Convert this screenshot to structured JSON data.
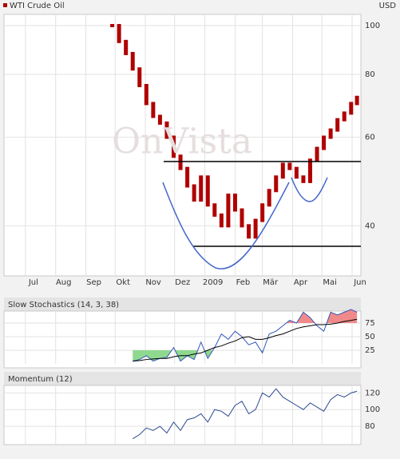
{
  "chart_data": [
    {
      "type": "candle",
      "title": "WTI Crude Oil",
      "unit": "USD",
      "watermark": "OnVista",
      "color": "#b00000",
      "log": true,
      "grid": true,
      "x": [
        111,
        118,
        125,
        132,
        139,
        146,
        153,
        160,
        167,
        174,
        181,
        188,
        195,
        202,
        209,
        216,
        223,
        230,
        237,
        244,
        251,
        258,
        265,
        272,
        279,
        286,
        293,
        300,
        307,
        314,
        321,
        328,
        335,
        342,
        349,
        356,
        362
      ],
      "values": [
        100,
        93,
        88,
        82,
        76,
        70,
        66,
        64,
        60,
        55,
        52,
        48,
        45,
        50,
        44,
        42,
        40,
        46,
        43,
        40,
        38,
        41,
        44,
        47,
        50,
        53,
        52,
        50,
        49,
        54,
        57,
        60,
        62,
        65,
        67,
        70,
        72
      ],
      "xlim": [
        0,
        366
      ],
      "xticks": [
        {
          "value": 22,
          "label": "Jul"
        },
        {
          "value": 53,
          "label": "Aug"
        },
        {
          "value": 84,
          "label": "Sep"
        },
        {
          "value": 114,
          "label": "Okt"
        },
        {
          "value": 145,
          "label": "Nov"
        },
        {
          "value": 175,
          "label": "Dez"
        },
        {
          "value": 206,
          "label": "2009"
        },
        {
          "value": 237,
          "label": "Feb"
        },
        {
          "value": 265,
          "label": "Mär"
        },
        {
          "value": 296,
          "label": "Apr"
        },
        {
          "value": 326,
          "label": "Mai"
        },
        {
          "value": 357,
          "label": "Jun"
        }
      ],
      "ylim": [
        31.8,
        104.5
      ],
      "yticks": [
        100,
        80,
        60,
        40
      ]
    },
    {
      "type": "line",
      "title": "Slow Stochastics (14, 3, 38)",
      "grid": true,
      "x": [
        111,
        118,
        125,
        132,
        139,
        146,
        153,
        160,
        167,
        174,
        181,
        188,
        195,
        202,
        209,
        216,
        223,
        230,
        237,
        244,
        251,
        258,
        265,
        272,
        279,
        286,
        293,
        300,
        307,
        314,
        321,
        328,
        335,
        342,
        349,
        356,
        362
      ],
      "xlim": [
        0,
        366
      ],
      "ylim": [
        0,
        100
      ],
      "yticks": [
        75,
        50,
        25
      ],
      "fill_colors": [
        "#f08a8a",
        "#8fd98f"
      ],
      "series": [
        {
          "color": "#3355bb",
          "values": [
            null,
            null,
            null,
            5,
            8,
            15,
            5,
            10,
            12,
            30,
            5,
            15,
            8,
            40,
            10,
            30,
            55,
            45,
            60,
            50,
            35,
            40,
            20,
            55,
            60,
            70,
            80,
            75,
            95,
            85,
            70,
            60,
            95,
            90,
            95,
            100,
            95
          ]
        },
        {
          "color": "#000000",
          "values": [
            null,
            null,
            null,
            5,
            6,
            8,
            9,
            10,
            10,
            13,
            15,
            15,
            18,
            20,
            25,
            30,
            33,
            38,
            42,
            48,
            50,
            45,
            45,
            48,
            52,
            55,
            60,
            65,
            68,
            70,
            72,
            72,
            73,
            75,
            78,
            80,
            82
          ]
        }
      ]
    },
    {
      "type": "line",
      "title": "Momentum (12)",
      "grid": true,
      "x": [
        111,
        118,
        125,
        132,
        139,
        146,
        153,
        160,
        167,
        174,
        181,
        188,
        195,
        202,
        209,
        216,
        223,
        230,
        237,
        244,
        251,
        258,
        265,
        272,
        279,
        286,
        293,
        300,
        307,
        314,
        321,
        328,
        335,
        342,
        349,
        356,
        362
      ],
      "xlim": [
        0,
        366
      ],
      "ylim": [
        59,
        128
      ],
      "yticks": [
        120,
        100,
        80
      ],
      "series": [
        {
          "color": "#2b4a90",
          "values": [
            null,
            null,
            null,
            65,
            70,
            78,
            75,
            80,
            72,
            85,
            75,
            88,
            90,
            95,
            85,
            100,
            98,
            92,
            105,
            110,
            95,
            100,
            120,
            115,
            125,
            115,
            110,
            105,
            100,
            108,
            103,
            98,
            112,
            118,
            115,
            120,
            122
          ]
        }
      ]
    }
  ]
}
